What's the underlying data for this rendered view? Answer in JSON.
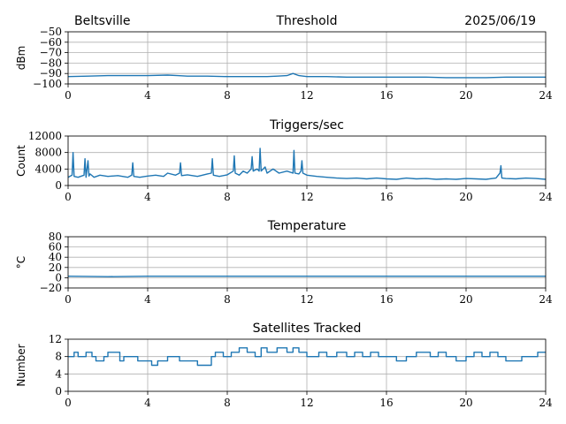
{
  "header": {
    "station": "Beltsville",
    "date": "2025/06/19"
  },
  "series_color": "#1f77b4",
  "chart_data": [
    {
      "type": "line",
      "title": "Threshold",
      "xlabel": "",
      "ylabel": "dBm",
      "xlim": [
        0,
        24
      ],
      "ylim": [
        -100,
        -50
      ],
      "xticks": [
        0,
        4,
        8,
        12,
        16,
        20,
        24
      ],
      "yticks": [
        -100,
        -90,
        -80,
        -70,
        -60,
        -50
      ],
      "yticklabels": [
        "−100",
        "−90",
        "−80",
        "−70",
        "−60",
        "−50"
      ],
      "grid": true,
      "x": [
        0,
        1,
        2,
        3,
        4,
        5,
        5.5,
        6,
        7,
        8,
        9,
        10,
        10.5,
        11,
        11.3,
        11.6,
        12,
        13,
        14,
        15,
        16,
        17,
        18,
        19,
        20,
        21,
        22,
        23,
        24
      ],
      "values": [
        -93,
        -92.5,
        -92,
        -92,
        -92,
        -91.5,
        -92,
        -92.5,
        -92.5,
        -93,
        -93,
        -93,
        -92.5,
        -92,
        -90,
        -92,
        -93,
        -93,
        -93.5,
        -93.5,
        -93.5,
        -93.5,
        -93.5,
        -94,
        -94,
        -94,
        -93.5,
        -93.5,
        -93.5
      ]
    },
    {
      "type": "line",
      "title": "Triggers/sec",
      "xlabel": "",
      "ylabel": "Count",
      "xlim": [
        0,
        24
      ],
      "ylim": [
        0,
        12000
      ],
      "xticks": [
        0,
        4,
        8,
        12,
        16,
        20,
        24
      ],
      "yticks": [
        0,
        4000,
        8000,
        12000
      ],
      "yticklabels": [
        "0",
        "4000",
        "8000",
        "12000"
      ],
      "grid": true,
      "x": [
        0,
        0.2,
        0.25,
        0.3,
        0.5,
        0.8,
        0.85,
        0.9,
        1.0,
        1.05,
        1.1,
        1.3,
        1.6,
        2.0,
        2.5,
        3.0,
        3.2,
        3.25,
        3.3,
        3.6,
        4.0,
        4.4,
        4.8,
        5.0,
        5.4,
        5.6,
        5.65,
        5.7,
        6.0,
        6.5,
        7.0,
        7.2,
        7.25,
        7.3,
        7.6,
        8.0,
        8.3,
        8.35,
        8.4,
        8.6,
        8.8,
        9.0,
        9.2,
        9.25,
        9.3,
        9.5,
        9.6,
        9.65,
        9.7,
        9.9,
        10.0,
        10.3,
        10.6,
        11.0,
        11.3,
        11.35,
        11.4,
        11.6,
        11.7,
        11.75,
        11.8,
        12.0,
        12.5,
        13.0,
        13.5,
        14.0,
        14.5,
        15.0,
        15.5,
        16.0,
        16.5,
        17.0,
        17.5,
        18.0,
        18.5,
        19.0,
        19.5,
        20.0,
        20.5,
        21.0,
        21.5,
        21.7,
        21.75,
        21.8,
        22.0,
        22.5,
        23.0,
        23.5,
        24.0
      ],
      "values": [
        2000,
        2500,
        8000,
        2200,
        2000,
        2500,
        6500,
        2000,
        6000,
        2300,
        2800,
        2000,
        2500,
        2200,
        2400,
        2000,
        2500,
        5500,
        2200,
        2000,
        2300,
        2500,
        2200,
        3000,
        2500,
        3000,
        5500,
        2400,
        2600,
        2200,
        2800,
        3000,
        6500,
        2500,
        2200,
        2600,
        3500,
        7200,
        3000,
        2500,
        3500,
        3000,
        4000,
        7000,
        3500,
        4000,
        3500,
        9000,
        3500,
        4500,
        3000,
        4000,
        3000,
        3500,
        3000,
        8500,
        3000,
        2800,
        3500,
        6000,
        3000,
        2500,
        2200,
        2000,
        1800,
        1700,
        1800,
        1600,
        1800,
        1600,
        1500,
        1800,
        1600,
        1700,
        1500,
        1600,
        1500,
        1700,
        1600,
        1500,
        1800,
        3000,
        4800,
        1800,
        1700,
        1600,
        1800,
        1700,
        1500
      ]
    },
    {
      "type": "line",
      "title": "Temperature",
      "xlabel": "",
      "ylabel": "°C",
      "xlim": [
        0,
        24
      ],
      "ylim": [
        -20,
        80
      ],
      "xticks": [
        0,
        4,
        8,
        12,
        16,
        20,
        24
      ],
      "yticks": [
        -20,
        0,
        20,
        40,
        60,
        80
      ],
      "yticklabels": [
        "−20",
        "0",
        "20",
        "40",
        "60",
        "80"
      ],
      "grid": true,
      "x": [
        0,
        2,
        4,
        6,
        8,
        10,
        12,
        14,
        16,
        18,
        20,
        22,
        24
      ],
      "values": [
        3,
        2,
        3,
        3,
        3,
        3,
        3,
        3,
        3,
        3,
        3,
        3,
        3
      ]
    },
    {
      "type": "line",
      "title": "Satellites Tracked",
      "xlabel": "",
      "ylabel": "Number",
      "xlim": [
        0,
        24
      ],
      "ylim": [
        0,
        12
      ],
      "xticks": [
        0,
        4,
        8,
        12,
        16,
        20,
        24
      ],
      "yticks": [
        0,
        4,
        8,
        12
      ],
      "yticklabels": [
        "0",
        "4",
        "8",
        "12"
      ],
      "grid": true,
      "step": true,
      "x": [
        0,
        0.3,
        0.5,
        0.9,
        1.2,
        1.4,
        1.8,
        2.0,
        2.6,
        2.8,
        3.5,
        4.2,
        4.5,
        5.0,
        5.6,
        5.9,
        6.5,
        7.2,
        7.4,
        7.8,
        8.2,
        8.6,
        9.0,
        9.4,
        9.7,
        10.0,
        10.5,
        11.0,
        11.3,
        11.6,
        12.0,
        12.6,
        13.0,
        13.5,
        14.0,
        14.4,
        14.8,
        15.2,
        15.6,
        16.0,
        16.5,
        17.0,
        17.5,
        18.2,
        18.6,
        19.0,
        19.5,
        20.0,
        20.4,
        20.8,
        21.2,
        21.6,
        22.0,
        22.4,
        22.8,
        23.2,
        23.6,
        24.0
      ],
      "values": [
        8,
        9,
        8,
        9,
        8,
        7,
        8,
        9,
        7,
        8,
        7,
        6,
        7,
        8,
        7,
        7,
        6,
        8,
        9,
        8,
        9,
        10,
        9,
        8,
        10,
        9,
        10,
        9,
        10,
        9,
        8,
        9,
        8,
        9,
        8,
        9,
        8,
        9,
        8,
        8,
        7,
        8,
        9,
        8,
        9,
        8,
        7,
        8,
        9,
        8,
        9,
        8,
        7,
        7,
        8,
        8,
        9,
        9
      ]
    }
  ]
}
